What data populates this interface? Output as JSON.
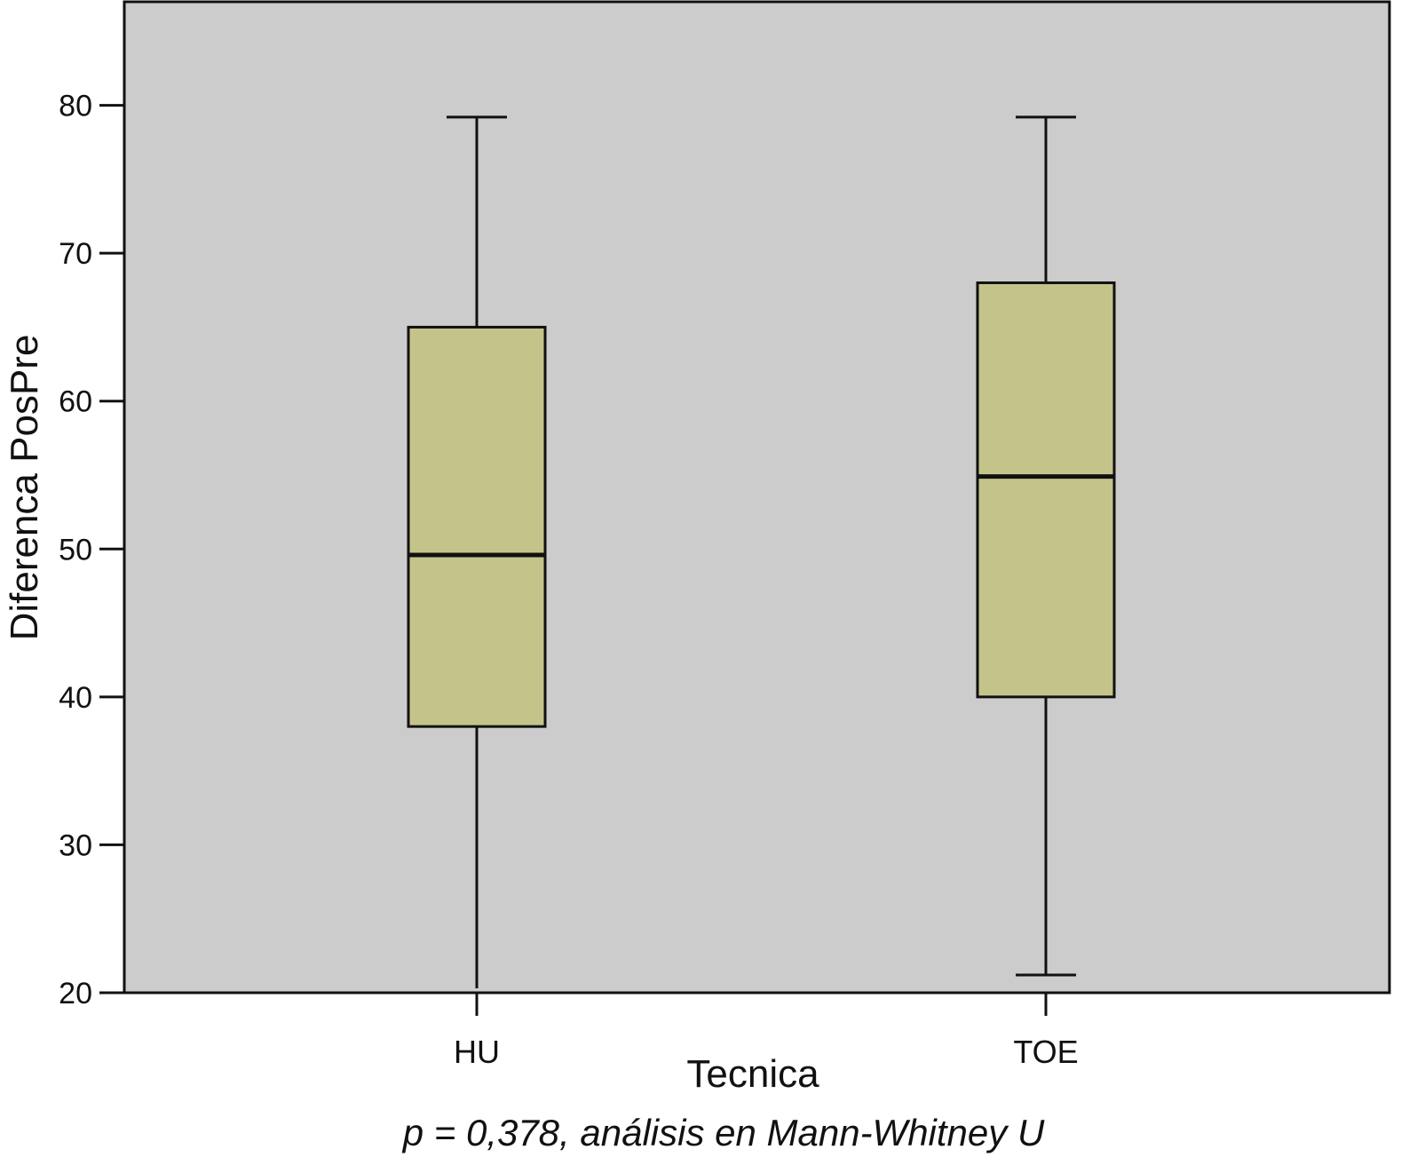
{
  "chart_data": {
    "type": "boxplot",
    "xlabel": "Tecnica",
    "ylabel": "Diferenca PosPre",
    "categories": [
      "HU",
      "TOE"
    ],
    "boxes": [
      {
        "category": "HU",
        "whisker_low": 20.3,
        "q1": 38,
        "median": 49.6,
        "q3": 65,
        "whisker_high": 79.2
      },
      {
        "category": "TOE",
        "whisker_low": 21.2,
        "q1": 40,
        "median": 54.9,
        "q3": 68,
        "whisker_high": 79.2
      }
    ],
    "ylim": [
      20,
      87
    ],
    "yticks": [
      20,
      30,
      40,
      50,
      60,
      70,
      80
    ],
    "grid": false,
    "legend": "none",
    "colors": {
      "plot_background": "#cccccc",
      "box_fill": "#c4c48a",
      "line": "#111111"
    }
  },
  "footnote": "p = 0,378, análisis en Mann-Whitney U"
}
